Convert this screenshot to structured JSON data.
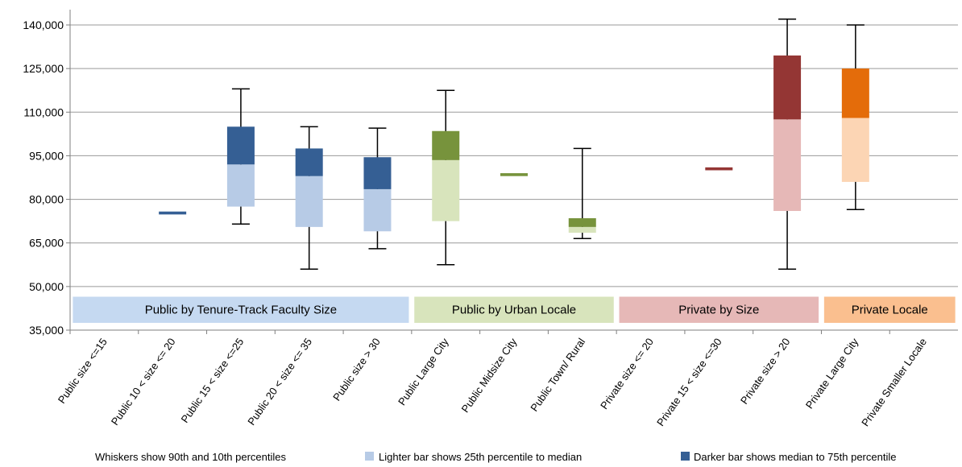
{
  "chart_data": {
    "type": "box",
    "title": "",
    "xlabel": "",
    "ylabel": "",
    "ylim": [
      35000,
      140000
    ],
    "yticks": [
      35000,
      50000,
      65000,
      80000,
      95000,
      110000,
      125000,
      140000
    ],
    "ytick_labels": [
      "35,000",
      "50,000",
      "65,000",
      "80,000",
      "95,000",
      "110,000",
      "125,000",
      "140,000"
    ],
    "grid": true,
    "categories": [
      "Public size <=15",
      "Public 10 < size <= 20",
      "Public 15 < size <=25",
      "Public 20 < size <= 35",
      "Public size > 30",
      "Public Large City",
      "Public Midsize City",
      "Public Town/ Rural",
      "Private size <= 20",
      "Private 15 < size <=30",
      "Private size > 20",
      "Private Large City",
      "Private Smaller Locale"
    ],
    "boxes": [
      {
        "p10": null,
        "p25": null,
        "median": null,
        "p75": null,
        "p90": null,
        "light": "#b7cbe6",
        "dark": "#355f94"
      },
      {
        "p10": null,
        "p25": 74800,
        "median": 74800,
        "p75": 75800,
        "p90": null,
        "light": "#b7cbe6",
        "dark": "#355f94"
      },
      {
        "p10": 71500,
        "p25": 77500,
        "median": 92000,
        "p75": 105000,
        "p90": 118000,
        "light": "#b7cbe6",
        "dark": "#355f94"
      },
      {
        "p10": 56000,
        "p25": 70500,
        "median": 88000,
        "p75": 97500,
        "p90": 105000,
        "light": "#b7cbe6",
        "dark": "#355f94"
      },
      {
        "p10": 63000,
        "p25": 69000,
        "median": 83500,
        "p75": 94500,
        "p90": 104500,
        "light": "#b7cbe6",
        "dark": "#355f94"
      },
      {
        "p10": 57500,
        "p25": 72500,
        "median": 93500,
        "p75": 103500,
        "p90": 117500,
        "light": "#d8e4bc",
        "dark": "#77933c"
      },
      {
        "p10": null,
        "p25": 88000,
        "median": 88000,
        "p75": 89000,
        "p90": null,
        "light": "#d8e4bc",
        "dark": "#77933c"
      },
      {
        "p10": 66500,
        "p25": 68500,
        "median": 70500,
        "p75": 73500,
        "p90": 97500,
        "light": "#d8e4bc",
        "dark": "#77933c"
      },
      {
        "p10": null,
        "p25": null,
        "median": null,
        "p75": null,
        "p90": null,
        "light": "#e6b8b7",
        "dark": "#943634"
      },
      {
        "p10": null,
        "p25": 90000,
        "median": 90000,
        "p75": 91000,
        "p90": null,
        "light": "#e6b8b7",
        "dark": "#943634"
      },
      {
        "p10": 56000,
        "p25": 76000,
        "median": 107500,
        "p75": 129500,
        "p90": 142000,
        "light": "#e6b8b7",
        "dark": "#943634"
      },
      {
        "p10": 76500,
        "p25": 86000,
        "median": 108000,
        "p75": 125000,
        "p90": 140000,
        "light": "#fcd5b4",
        "dark": "#e46c0a"
      },
      {
        "p10": null,
        "p25": null,
        "median": null,
        "p75": null,
        "p90": null,
        "light": "#fcd5b4",
        "dark": "#e46c0a"
      }
    ],
    "group_labels": [
      {
        "text": "Public by Tenure-Track Faculty Size",
        "color": "#c5d9f1",
        "from": 0,
        "to": 4
      },
      {
        "text": "Public by Urban Locale",
        "color": "#d8e4bc",
        "from": 5,
        "to": 7
      },
      {
        "text": "Private by Size",
        "color": "#e6b8b7",
        "from": 8,
        "to": 10
      },
      {
        "text": "Private Locale",
        "color": "#fabf8f",
        "from": 11,
        "to": 12
      }
    ],
    "legend": {
      "whiskers": "Whiskers show 90th and 10th percentiles",
      "light": "Lighter bar shows 25th percentile to median",
      "dark": "Darker bar shows median to 75th percentile",
      "light_color": "#b7cbe6",
      "dark_color": "#355f94"
    }
  }
}
